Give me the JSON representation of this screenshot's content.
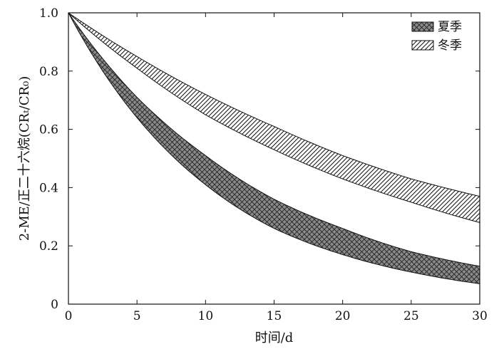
{
  "chart_data": {
    "type": "area",
    "title": "",
    "xlabel": "时间/d",
    "ylabel": "2-ME/正二十六烷(CRₜ/CR₀)",
    "xlim": [
      0,
      30
    ],
    "ylim": [
      0,
      1.0
    ],
    "x_ticks": [
      "0",
      "5",
      "10",
      "15",
      "20",
      "25",
      "30"
    ],
    "y_ticks": [
      "0",
      "0.2",
      "0.4",
      "0.6",
      "0.8",
      "1.0"
    ],
    "grid": false,
    "legend_position": "top-right",
    "x": [
      0,
      5,
      10,
      15,
      20,
      25,
      30
    ],
    "series": [
      {
        "name": "夏季",
        "fill": "crosshatch",
        "color": "#8a8a8a",
        "upper": [
          1.0,
          0.71,
          0.51,
          0.36,
          0.26,
          0.18,
          0.13
        ],
        "lower": [
          1.0,
          0.64,
          0.41,
          0.26,
          0.17,
          0.11,
          0.07
        ]
      },
      {
        "name": "冬季",
        "fill": "diagonal",
        "color": "#ffffff",
        "upper": [
          1.0,
          0.85,
          0.72,
          0.61,
          0.51,
          0.43,
          0.37
        ],
        "lower": [
          1.0,
          0.81,
          0.65,
          0.53,
          0.43,
          0.35,
          0.28
        ]
      }
    ]
  }
}
